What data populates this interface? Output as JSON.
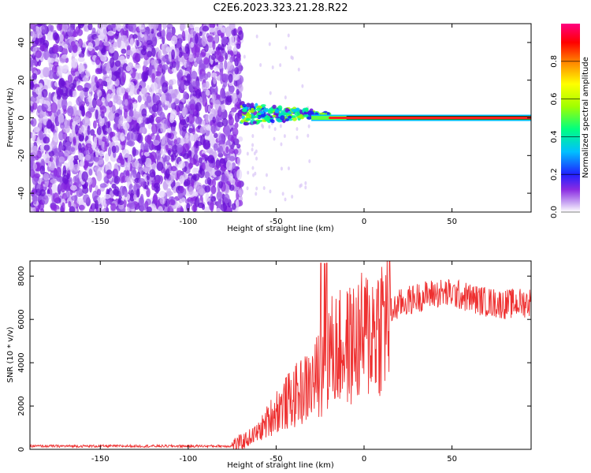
{
  "title": "C2E6.2023.323.21.28.R22",
  "chart_data": [
    {
      "type": "heatmap",
      "xlabel": "Height of straight line (km)",
      "ylabel": "Frequency (Hz)",
      "xlim": [
        -190,
        95
      ],
      "ylim": [
        -50,
        50
      ],
      "xticks": [
        -150,
        -100,
        -50,
        0,
        50
      ],
      "yticks": [
        -40,
        -20,
        0,
        20,
        40
      ],
      "colorbar": {
        "label": "Normalized spectral amplitude",
        "range": [
          0,
          1
        ],
        "ticks": [
          "0.0",
          "0.2",
          "0.4",
          "0.6",
          "0.8"
        ],
        "colors": [
          "#ffffff",
          "#8a2be2",
          "#2020ff",
          "#00c0ff",
          "#00ff80",
          "#a0ff00",
          "#ffff00",
          "#ff8000",
          "#ff0000",
          "#ff0080"
        ]
      },
      "regions": [
        {
          "x_range": [
            -190,
            -70
          ],
          "description": "noise",
          "amplitude": 0.05
        },
        {
          "x_range": [
            -70,
            -20
          ],
          "center_frequency": 2,
          "amplitude": 0.35
        },
        {
          "x_range": [
            -20,
            95
          ],
          "center_frequency": 0,
          "amplitude": 0.9
        }
      ]
    },
    {
      "type": "line",
      "xlabel": "Height of straight line (km)",
      "ylabel": "SNR (10 * v/v)",
      "xlim": [
        -190,
        95
      ],
      "ylim": [
        0,
        8700
      ],
      "xticks": [
        -150,
        -100,
        -50,
        0,
        50
      ],
      "yticks": [
        0,
        2000,
        4000,
        6000,
        8000
      ],
      "color": "#ee3030",
      "series": [
        {
          "x": [
            -190,
            -150,
            -100,
            -75,
            -70,
            -60,
            -50,
            -40,
            -30,
            -25,
            -20,
            -10,
            0,
            10,
            20,
            30,
            40,
            50,
            60,
            70,
            80,
            95
          ],
          "values": [
            150,
            150,
            150,
            150,
            300,
            800,
            1800,
            2400,
            3000,
            3500,
            4500,
            4700,
            5200,
            5900,
            6700,
            7000,
            7200,
            7200,
            7000,
            6800,
            6700,
            6800
          ]
        }
      ]
    }
  ]
}
